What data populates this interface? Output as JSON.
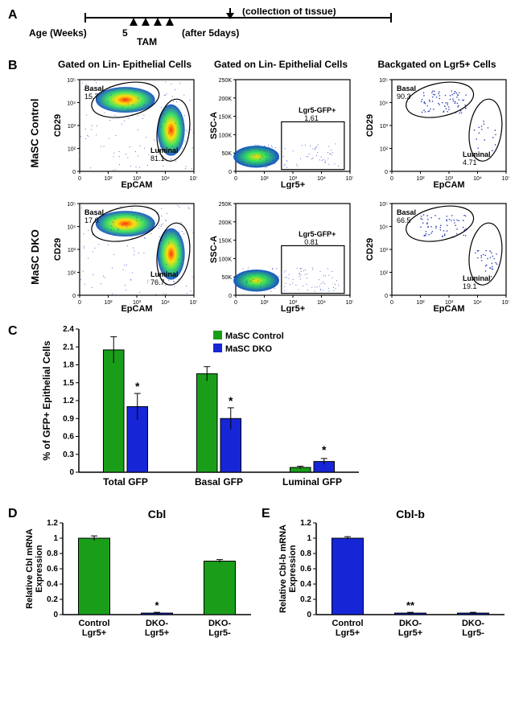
{
  "panelA": {
    "label": "A",
    "ageLabel": "Age (Weeks)",
    "tick": "5",
    "tam": "TAM",
    "after": "(after 5days)",
    "collection": "(collection of tissue)"
  },
  "panelB": {
    "label": "B",
    "col1": "Gated on Lin- Epithelial Cells",
    "col2": "Gated on Lin- Epithelial Cells",
    "col3": "Backgated on Lgr5+ Cells",
    "row1": "MaSC Control",
    "row2": "MaSC DKO",
    "plots": {
      "p11": {
        "xlabel": "EpCAM",
        "ylabel": "CD29",
        "xticks": [
          "0",
          "10²",
          "10³",
          "10⁴",
          "10⁵"
        ],
        "yticks": [
          "0",
          "10²",
          "10³",
          "10⁴",
          "10⁵"
        ],
        "basal": "Basal\n15.7",
        "luminal": "Luminal\n81.1"
      },
      "p12": {
        "xlabel": "Lgr5+",
        "ylabel": "SSC-A",
        "xticks": [
          "0",
          "10²",
          "10³",
          "10⁴",
          "10⁵"
        ],
        "yticks": [
          "0",
          "50K",
          "100K",
          "150K",
          "200K",
          "250K"
        ],
        "gfp": "Lgr5-GFP+\n1.61"
      },
      "p13": {
        "xlabel": "EpCAM",
        "ylabel": "CD29",
        "xticks": [
          "0",
          "10²",
          "10³",
          "10⁴",
          "10⁵"
        ],
        "yticks": [
          "0",
          "10²",
          "10³",
          "10⁴",
          "10⁵"
        ],
        "basal": "Basal\n90.3",
        "luminal": "Luminal\n4.71"
      },
      "p21": {
        "xlabel": "EpCAM",
        "ylabel": "CD29",
        "xticks": [
          "0",
          "10²",
          "10³",
          "10⁴",
          "10⁵"
        ],
        "yticks": [
          "0",
          "10²",
          "10³",
          "10⁴",
          "10⁵"
        ],
        "basal": "Basal\n17.6",
        "luminal": "Luminal\n76.7"
      },
      "p22": {
        "xlabel": "Lgr5+",
        "ylabel": "SSC-A",
        "xticks": [
          "0",
          "10²",
          "10³",
          "10⁴",
          "10⁵"
        ],
        "yticks": [
          "0",
          "50K",
          "100K",
          "150K",
          "200K",
          "250K"
        ],
        "gfp": "Lgr5-GFP+\n0.81"
      },
      "p23": {
        "xlabel": "EpCAM",
        "ylabel": "CD29",
        "xticks": [
          "0",
          "10²",
          "10³",
          "10⁴",
          "10⁵"
        ],
        "yticks": [
          "0",
          "10²",
          "10³",
          "10⁴",
          "10⁵"
        ],
        "basal": "Basal\n66.5",
        "luminal": "Luminal\n19.1"
      }
    }
  },
  "panelC": {
    "label": "C",
    "ylabel": "% of GFP+ Epithelial Cells",
    "legend": [
      {
        "label": "MaSC Control",
        "color": "#1a9e1a"
      },
      {
        "label": "MaSC DKO",
        "color": "#1626d6"
      }
    ],
    "yticks": [
      "0",
      "0.3",
      "0.6",
      "0.9",
      "1.2",
      "1.5",
      "1.8",
      "2.1",
      "2.4"
    ],
    "categories": [
      "Total GFP",
      "Basal GFP",
      "Luminal GFP"
    ],
    "ymax": 2.4,
    "groups": [
      {
        "control": 2.05,
        "control_err": 0.22,
        "dko": 1.1,
        "dko_err": 0.22,
        "sig": "*"
      },
      {
        "control": 1.65,
        "control_err": 0.12,
        "dko": 0.9,
        "dko_err": 0.18,
        "sig": "*"
      },
      {
        "control": 0.08,
        "control_err": 0.02,
        "dko": 0.18,
        "dko_err": 0.05,
        "sig": "*"
      }
    ],
    "colors": {
      "control": "#1a9e1a",
      "dko": "#1626d6"
    }
  },
  "panelD": {
    "label": "D",
    "title": "Cbl",
    "ylabel": "Relative Cbl mRNA\nExpression",
    "yticks": [
      "0",
      "0.2",
      "0.4",
      "0.6",
      "0.8",
      "1",
      "1.2"
    ],
    "ymax": 1.2,
    "categories": [
      "Control\nLgr5+",
      "DKO-\nLgr5+",
      "DKO-\nLgr5-"
    ],
    "values": [
      {
        "v": 1.0,
        "err": 0.03,
        "color": "#1a9e1a"
      },
      {
        "v": 0.02,
        "err": 0.01,
        "color": "#1626d6",
        "sig": "*"
      },
      {
        "v": 0.7,
        "err": 0.02,
        "color": "#1a9e1a"
      }
    ]
  },
  "panelE": {
    "label": "E",
    "title": "Cbl-b",
    "ylabel": "Relative Cbl-b mRNA\nExpression",
    "yticks": [
      "0",
      "0.2",
      "0.4",
      "0.6",
      "0.8",
      "1",
      "1.2"
    ],
    "ymax": 1.2,
    "categories": [
      "Control\nLgr5+",
      "DKO-\nLgr5+",
      "DKO-\nLgr5-"
    ],
    "values": [
      {
        "v": 1.0,
        "err": 0.02,
        "color": "#1626d6"
      },
      {
        "v": 0.02,
        "err": 0.01,
        "color": "#1626d6",
        "sig": "**"
      },
      {
        "v": 0.02,
        "err": 0.01,
        "color": "#1626d6"
      }
    ]
  }
}
